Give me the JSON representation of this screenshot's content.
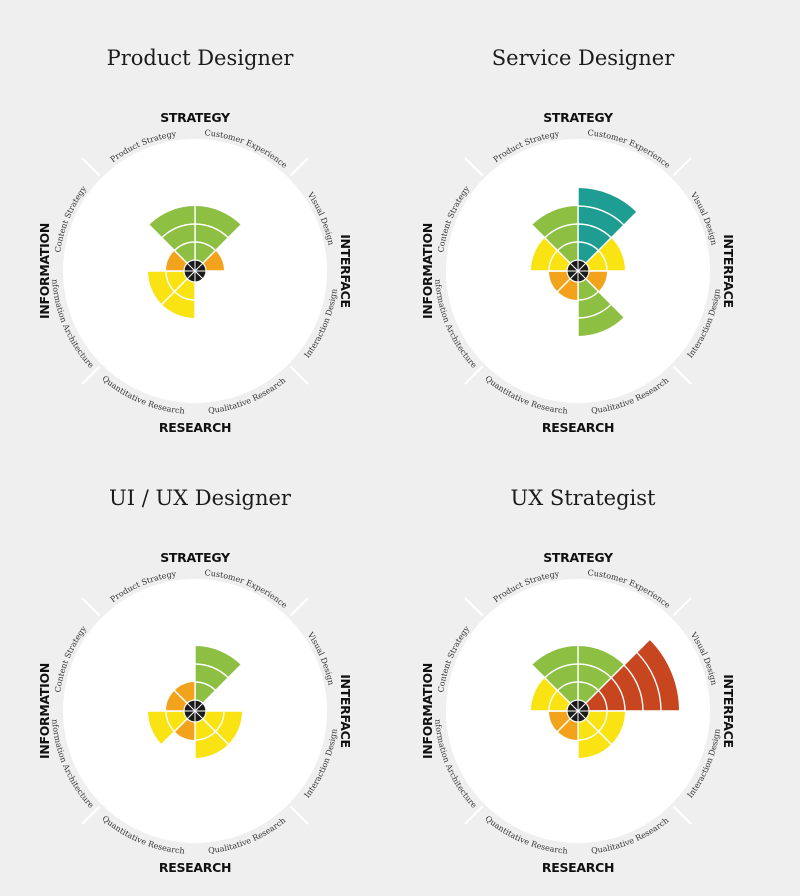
{
  "categories": {
    "top": "STRATEGY",
    "right": "INTERFACE",
    "bottom": "RESEARCH",
    "left": "INFORMATION"
  },
  "subcategories": [
    "Customer Experience",
    "Visual Design",
    "Interaction Design",
    "Qualitative Research",
    "Quantitative Research",
    "Information Architecture",
    "Content Strategy",
    "Product Strategy"
  ],
  "colors": {
    "level_1": "#f3a21c",
    "level_2": "#f9e312",
    "level_3": "#8dbf43",
    "level_4": "#1e9e93",
    "level_5": "#c8461f",
    "hub": "#1a1a1a",
    "disc": "#ffffff",
    "ring_line": "#ffffff",
    "tick": "#ffffff"
  },
  "charts": [
    {
      "title": "Product Designer",
      "levels": [
        3,
        1,
        0,
        0,
        2,
        2,
        1,
        3
      ]
    },
    {
      "title": "Service Designer",
      "levels": [
        4,
        2,
        1,
        3,
        1,
        1,
        2,
        3
      ]
    },
    {
      "title": "UI / UX Designer",
      "levels": [
        3,
        0,
        2,
        2,
        1,
        2,
        1,
        1
      ]
    },
    {
      "title": "UX Strategist",
      "levels": [
        3,
        5,
        2,
        2,
        1,
        1,
        2,
        3
      ]
    }
  ]
}
